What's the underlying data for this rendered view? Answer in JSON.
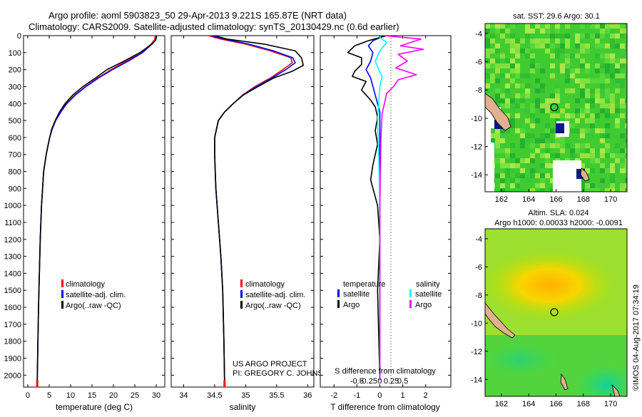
{
  "title": {
    "line1": "Argo profile: aoml 5903823_50 29-Apr-2013 9.221S 165.87E (NRT data)",
    "line2": "Climatology: CARS2009. Satellite-adjusted climatology: synTS_20130429.nc (0.6d earlier)"
  },
  "depth_ticks": [
    0,
    100,
    200,
    300,
    400,
    500,
    600,
    700,
    800,
    900,
    1000,
    1100,
    1200,
    1300,
    1400,
    1500,
    1600,
    1700,
    1800,
    1900,
    2000
  ],
  "colors": {
    "climatology": "#ff0000",
    "satellite": "#0000ff",
    "argo": "#000000",
    "salinity_sat": "#00ffff",
    "salinity_argo": "#ff00ff"
  },
  "legends": {
    "temp_salt": [
      "climatology",
      "satellite-adj. clim.",
      "Argo(..raw -QC)"
    ],
    "diff_temperature_header": "temperature",
    "diff_salinity_header": "salinity",
    "diff_temperature_items": [
      "satellite",
      "Argo"
    ],
    "diff_salinity_items": [
      "satellite",
      "Argo"
    ]
  },
  "credits": {
    "project": "US ARGO PROJECT",
    "pi": "PI: GREGORY C. JOHNSON"
  },
  "side_stamp": "©IMOS 04-Aug-2017 07:34:19",
  "chart_data": [
    {
      "id": "temperature",
      "type": "line",
      "xlabel": "temperature (deg C)",
      "ylabel": "",
      "xlim": [
        -1,
        32
      ],
      "ylim": [
        2070,
        0
      ],
      "xticks": [
        0,
        5,
        10,
        15,
        20,
        25,
        30
      ],
      "series": [
        {
          "name": "climatology",
          "color": "#ff0000",
          "x": [
            29.8,
            29.6,
            28.8,
            26.5,
            23,
            19.5,
            16.3,
            13.5,
            11,
            9,
            7.6,
            6.5,
            5.7,
            5.1,
            4.3,
            3.7,
            3.2,
            2.9,
            2.5,
            2.2
          ],
          "y": [
            0,
            25,
            50,
            100,
            150,
            200,
            250,
            300,
            350,
            400,
            450,
            500,
            550,
            600,
            700,
            800,
            1000,
            1200,
            1600,
            2030
          ]
        },
        {
          "name": "satellite-adj. clim.",
          "color": "#0000ff",
          "x": [
            30.1,
            29.9,
            29,
            26.8,
            23.5,
            19.8,
            16.5,
            13.6,
            11.1,
            9.1,
            7.7,
            6.5,
            5.7,
            5.1,
            4.3,
            3.7,
            3.2,
            2.9,
            2.5,
            2.2
          ],
          "y": [
            0,
            25,
            50,
            100,
            150,
            200,
            250,
            300,
            350,
            400,
            450,
            500,
            550,
            600,
            700,
            800,
            1000,
            1200,
            1600,
            2030
          ]
        },
        {
          "name": "Argo(..raw -QC)",
          "color": "#000000",
          "x": [
            30.1,
            29.9,
            29,
            26.2,
            22.5,
            18.5,
            15.8,
            12.9,
            10.5,
            8.7,
            7.4,
            6.4,
            5.6,
            5.1,
            4.3,
            3.7,
            3.2,
            2.9,
            2.5,
            2.2
          ],
          "y": [
            0,
            25,
            50,
            100,
            150,
            200,
            250,
            300,
            350,
            400,
            450,
            500,
            550,
            600,
            700,
            800,
            1000,
            1200,
            1600,
            2030
          ]
        }
      ]
    },
    {
      "id": "salinity",
      "type": "line",
      "xlabel": "salinity",
      "ylabel": "",
      "xlim": [
        33.8,
        36.1
      ],
      "ylim": [
        2070,
        0
      ],
      "xticks": [
        34,
        34.5,
        35,
        35.5,
        36
      ],
      "series": [
        {
          "name": "climatology",
          "color": "#ff0000",
          "x": [
            34.4,
            34.6,
            35.0,
            35.4,
            35.73,
            35.75,
            35.6,
            35.4,
            35.15,
            34.95,
            34.8,
            34.66,
            34.56,
            34.5,
            34.5,
            34.52,
            34.56,
            34.6,
            34.63,
            34.65,
            34.66
          ],
          "y": [
            0,
            20,
            50,
            90,
            130,
            160,
            200,
            250,
            300,
            350,
            400,
            450,
            500,
            600,
            700,
            900,
            1100,
            1300,
            1500,
            1800,
            2030
          ]
        },
        {
          "name": "satellite-adj. clim.",
          "color": "#0000ff",
          "x": [
            34.45,
            34.65,
            35.05,
            35.45,
            35.76,
            35.8,
            35.65,
            35.42,
            35.17,
            34.96,
            34.8,
            34.66,
            34.56,
            34.5,
            34.5,
            34.52,
            34.56,
            34.6,
            34.63,
            34.65,
            34.66
          ],
          "y": [
            0,
            20,
            50,
            90,
            130,
            160,
            200,
            250,
            300,
            350,
            400,
            450,
            500,
            600,
            700,
            900,
            1100,
            1300,
            1500,
            1800,
            2030
          ]
        },
        {
          "name": "Argo(..raw -QC)",
          "color": "#000000",
          "x": [
            34.5,
            34.7,
            35.3,
            35.8,
            35.9,
            35.93,
            35.75,
            35.45,
            35.2,
            34.96,
            34.8,
            34.66,
            34.56,
            34.5,
            34.5,
            34.52,
            34.56,
            34.6,
            34.63,
            34.65,
            34.66
          ],
          "y": [
            0,
            20,
            50,
            90,
            130,
            175,
            210,
            250,
            300,
            350,
            400,
            450,
            500,
            600,
            700,
            900,
            1100,
            1300,
            1500,
            1800,
            2030
          ]
        }
      ]
    },
    {
      "id": "difference",
      "type": "line",
      "xlabel": "T difference from climatology",
      "xlabel2": "S difference from climatology",
      "xlim": [
        -2.6,
        3.1
      ],
      "ylim": [
        2070,
        0
      ],
      "xticks": [
        -2,
        -1,
        0,
        1,
        2
      ],
      "xticks2": [
        -0.5,
        -0.25,
        0,
        0.25,
        0.5
      ],
      "xticks2_labels": [
        "-0.5",
        "-0.25",
        "0",
        "0.25",
        "0.5"
      ],
      "series": [
        {
          "name": "temperature satellite",
          "color": "#0000ff",
          "x": [
            0.2,
            -0.3,
            -0.5,
            -0.3,
            -0.4,
            -0.6,
            -0.4,
            -0.3,
            -0.2,
            -0.1,
            0,
            0,
            0,
            0,
            0,
            0
          ],
          "y": [
            0,
            30,
            60,
            100,
            150,
            200,
            250,
            300,
            350,
            400,
            450,
            500,
            600,
            800,
            1200,
            2030
          ]
        },
        {
          "name": "temperature Argo",
          "color": "#000000",
          "x": [
            0.3,
            -0.5,
            -1.1,
            -1.4,
            -0.8,
            -0.8,
            -1.1,
            -1.2,
            -0.6,
            -0.8,
            -0.4,
            -0.2,
            -0.1,
            -0.2,
            -0.1,
            -0.3,
            -0.4,
            -0.1,
            0,
            -0.1,
            0
          ],
          "y": [
            0,
            30,
            60,
            100,
            130,
            170,
            210,
            240,
            270,
            320,
            380,
            420,
            480,
            560,
            640,
            760,
            850,
            1000,
            1200,
            1500,
            2030
          ]
        },
        {
          "name": "salinity satellite",
          "color": "#00ffff",
          "x": [
            -0.1,
            0.3,
            0.0,
            -0.2,
            -0.05,
            0.1,
            0.0,
            -0.05,
            -0.1,
            -0.08,
            -0.05,
            -0.03,
            0,
            0
          ],
          "y": [
            0,
            40,
            90,
            150,
            200,
            240,
            300,
            400,
            500,
            600,
            700,
            800,
            1000,
            2030
          ]
        },
        {
          "name": "salinity Argo",
          "color": "#ff00ff",
          "x": [
            0.2,
            1.8,
            0.9,
            1.9,
            0.8,
            1.2,
            0.7,
            1.6,
            0.8,
            0.6,
            0.3,
            0.2,
            0.1,
            0.05,
            0,
            0
          ],
          "y": [
            0,
            20,
            60,
            80,
            110,
            150,
            190,
            230,
            260,
            300,
            340,
            400,
            460,
            600,
            1000,
            2030
          ]
        }
      ]
    }
  ],
  "maps": [
    {
      "id": "sst",
      "title": "sat. SST: 29.6 Argo: 30.1",
      "xticks": [
        "162",
        "164",
        "166",
        "168",
        "170"
      ],
      "yticks": [
        "-4",
        "-6",
        "-8",
        "-10",
        "-12",
        "-14"
      ],
      "marker_lon": 165.87,
      "marker_lat": -9.221
    },
    {
      "id": "sla",
      "title": "Altim. SLA: 0.024",
      "subtitle": "Argo h1000: 0.00033 h2000: -0.0091",
      "xticks": [
        "162",
        "164",
        "166",
        "168",
        "170"
      ],
      "yticks": [
        "-4",
        "-6",
        "-8",
        "-10",
        "-12",
        "-14"
      ],
      "marker_lon": 165.87,
      "marker_lat": -9.221
    }
  ]
}
